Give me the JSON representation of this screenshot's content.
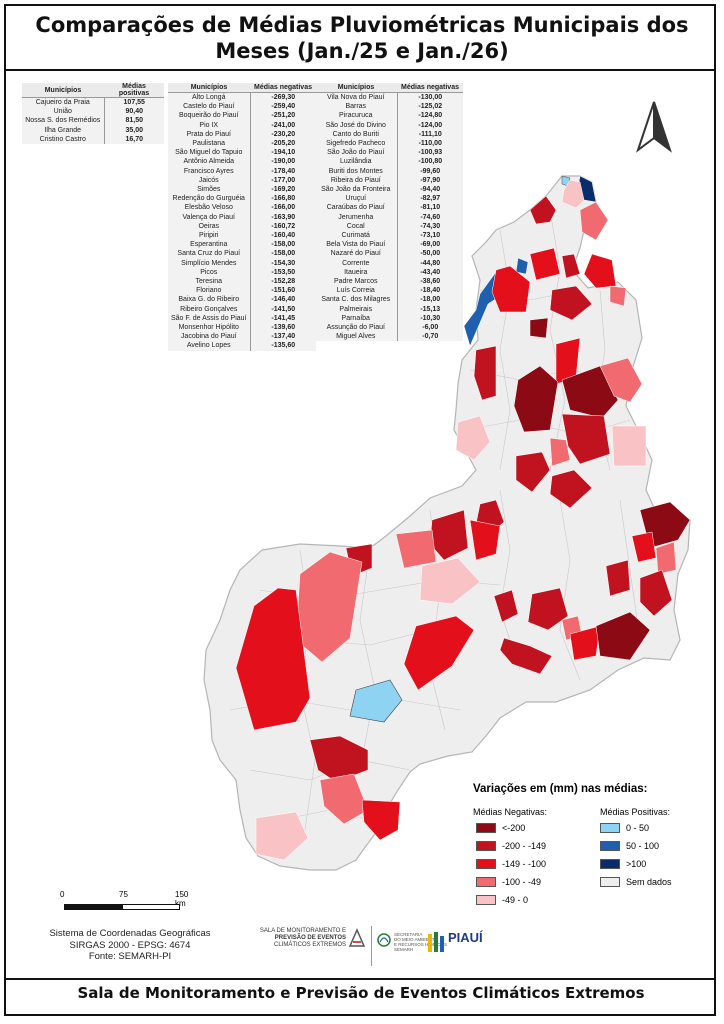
{
  "title": "Comparações de Médias Pluviométricas Municipais dos Meses (Jan./25 e Jan./26)",
  "footer": "Sala de Monitoramento e Previsão de Eventos Climáticos Extremos",
  "tables": {
    "positivas": {
      "header_name": "Municípios",
      "header_value": "Médias positivas",
      "rows": [
        {
          "name": "Cajueiro da Praia",
          "value": "107,55"
        },
        {
          "name": "União",
          "value": "90,40"
        },
        {
          "name": "Nossa S. dos Remédios",
          "value": "81,50"
        },
        {
          "name": "Ilha Grande",
          "value": "35,00"
        },
        {
          "name": "Cristino Castro",
          "value": "16,70"
        }
      ]
    },
    "negativas1": {
      "header_name": "Municípios",
      "header_value": "Médias negativas",
      "rows": [
        {
          "name": "Alto Longá",
          "value": "-269,30"
        },
        {
          "name": "Castelo do Piauí",
          "value": "-259,40"
        },
        {
          "name": "Boqueirão do Piauí",
          "value": "-251,20"
        },
        {
          "name": "Pio IX",
          "value": "-241,00"
        },
        {
          "name": "Prata do Piauí",
          "value": "-230,20"
        },
        {
          "name": "Paulistana",
          "value": "-205,20"
        },
        {
          "name": "São Miguel do Tapuio",
          "value": "-194,10"
        },
        {
          "name": "Antônio Almeida",
          "value": "-190,00"
        },
        {
          "name": "Francisco Ayres",
          "value": "-178,40"
        },
        {
          "name": "Jaicós",
          "value": "-177,00"
        },
        {
          "name": "Simões",
          "value": "-169,20"
        },
        {
          "name": "Redenção do Gurguéia",
          "value": "-166,80"
        },
        {
          "name": "Elesbão Veloso",
          "value": "-166,00"
        },
        {
          "name": "Valença do Piauí",
          "value": "-163,90"
        },
        {
          "name": "Oeiras",
          "value": "-160,72"
        },
        {
          "name": "Piripiri",
          "value": "-160,40"
        },
        {
          "name": "Esperantina",
          "value": "-158,00"
        },
        {
          "name": "Santa Cruz do Piauí",
          "value": "-158,00"
        },
        {
          "name": "Simplício Mendes",
          "value": "-154,30"
        },
        {
          "name": "Picos",
          "value": "-153,50"
        },
        {
          "name": "Teresina",
          "value": "-152,28"
        },
        {
          "name": "Floriano",
          "value": "-151,60"
        },
        {
          "name": "Baixa G. do Ribeiro",
          "value": "-146,40"
        },
        {
          "name": "Ribeiro Gonçalves",
          "value": "-141,50"
        },
        {
          "name": "São F. de Assis do Piauí",
          "value": "-141,45"
        },
        {
          "name": "Monsenhor Hipólito",
          "value": "-139,60"
        },
        {
          "name": "Jacobina do Piauí",
          "value": "-137,40"
        },
        {
          "name": "Avelino Lopes",
          "value": "-135,60"
        }
      ]
    },
    "negativas2": {
      "header_name": "Municípios",
      "header_value": "Médias negativas",
      "rows": [
        {
          "name": "Vila Nova do Piauí",
          "value": "-130,00"
        },
        {
          "name": "Barras",
          "value": "-125,02"
        },
        {
          "name": "Piracuruca",
          "value": "-124,80"
        },
        {
          "name": "São José do Divino",
          "value": "-124,00"
        },
        {
          "name": "Canto do Buriti",
          "value": "-111,10"
        },
        {
          "name": "Sigefredo Pacheco",
          "value": "-110,00"
        },
        {
          "name": "São João do Piauí",
          "value": "-100,93"
        },
        {
          "name": "Luzilândia",
          "value": "-100,80"
        },
        {
          "name": "Buriti dos Montes",
          "value": "-99,60"
        },
        {
          "name": "Ribeira do Piauí",
          "value": "-97,90"
        },
        {
          "name": "São João da Fronteira",
          "value": "-94,40"
        },
        {
          "name": "Uruçuí",
          "value": "-82,97"
        },
        {
          "name": "Caraúbas do Piauí",
          "value": "-81,10"
        },
        {
          "name": "Jerumenha",
          "value": "-74,60"
        },
        {
          "name": "Cocal",
          "value": "-74,30"
        },
        {
          "name": "Curimatá",
          "value": "-73,10"
        },
        {
          "name": "Bela Vista do Piauí",
          "value": "-69,00"
        },
        {
          "name": "Nazaré do Piauí",
          "value": "-50,00"
        },
        {
          "name": "Corrente",
          "value": "-44,80"
        },
        {
          "name": "Itaueira",
          "value": "-43,40"
        },
        {
          "name": "Padre Marcos",
          "value": "-38,60"
        },
        {
          "name": "Luís Correia",
          "value": "-18,40"
        },
        {
          "name": "Santa C. dos Milagres",
          "value": "-18,00"
        },
        {
          "name": "Palmeirais",
          "value": "-15,13"
        },
        {
          "name": "Parnaíba",
          "value": "-10,30"
        },
        {
          "name": "Assunção do Piauí",
          "value": "-6,00"
        },
        {
          "name": "Miguel Alves",
          "value": "-0,70"
        }
      ]
    }
  },
  "legend": {
    "title": "Variações em (mm) nas médias:",
    "negativas_title": "Médias Negativas:",
    "positivas_title": "Médias Positivas:",
    "negativas": [
      {
        "label": "<-200",
        "color": "#8b0a14"
      },
      {
        "label": "-200 - -149",
        "color": "#c1121f"
      },
      {
        "label": "-149 - -100",
        "color": "#e3101c"
      },
      {
        "label": "-100 - -49",
        "color": "#f06a6f"
      },
      {
        "label": "-49 - 0",
        "color": "#f9c3c6"
      }
    ],
    "positivas": [
      {
        "label": "0 - 50",
        "color": "#8fd3f2"
      },
      {
        "label": "50 - 100",
        "color": "#1f5fb0"
      },
      {
        "label": ">100",
        "color": "#0b2c6b"
      },
      {
        "label": "Sem dados",
        "color": "#eeeeee"
      }
    ]
  },
  "scale": {
    "labels": [
      "0",
      "75",
      "150 km"
    ]
  },
  "credits": [
    "Sistema de Coordenadas Geográficas",
    "SIRGAS 2000 - EPSG: 4674",
    "Fonte: SEMARH-PI"
  ],
  "logos": {
    "sala": [
      "SALA DE MONITORAMENTO E",
      "PREVISÃO DE EVENTOS",
      "CLIMÁTICOS EXTREMOS"
    ],
    "secretaria": [
      "SECRETARIA",
      "DO MEIO AMBIENTE",
      "E RECURSOS HÍDRICOS",
      "SEMARH"
    ],
    "governo": "PIAUÍ"
  },
  "colors": {
    "very_neg": "#8b0a14",
    "neg2": "#c1121f",
    "neg3": "#e3101c",
    "neg4": "#f06a6f",
    "neg5": "#f9c3c6",
    "pos1": "#8fd3f2",
    "pos2": "#1f5fb0",
    "pos3": "#0b2c6b",
    "nodata": "#eeeeee"
  }
}
